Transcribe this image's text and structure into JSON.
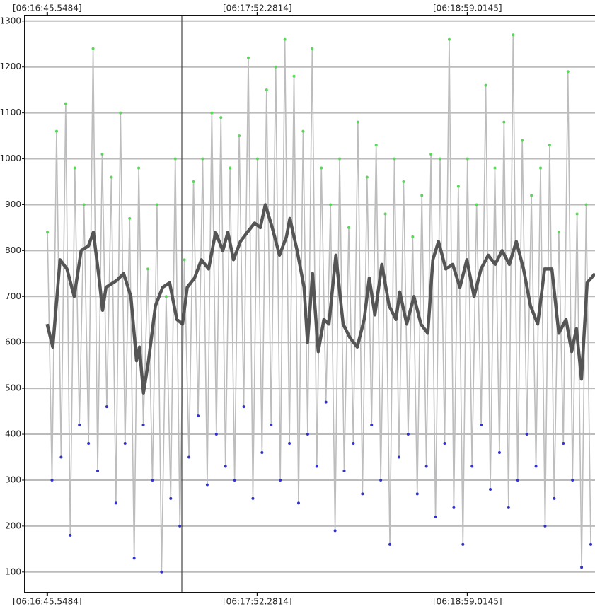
{
  "chart_data": {
    "type": "line",
    "xlim": [
      38.4,
      219.5
    ],
    "ylim": [
      55,
      1312
    ],
    "xticks": [
      {
        "value": 45.5484,
        "label": "[06:16:45.5484]"
      },
      {
        "value": 112.2814,
        "label": "[06:17:52.2814]"
      },
      {
        "value": 179.0145,
        "label": "[06:18:59.0145]"
      }
    ],
    "yticks": [
      100,
      200,
      300,
      400,
      500,
      600,
      700,
      800,
      900,
      1000,
      1100,
      1200,
      1300
    ],
    "grid": true,
    "series": [
      {
        "color": "#bdbdbd",
        "marker_colors": [
          "#5ad65a",
          "#3232c8"
        ],
        "x": [
          45.6,
          47.05,
          48.5,
          49.95,
          51.4,
          52.85,
          54.3,
          55.75,
          57.2,
          58.65,
          60.1,
          61.55,
          63,
          64.45,
          65.9,
          67.35,
          68.8,
          70.25,
          71.7,
          73.15,
          74.6,
          76.05,
          77.5,
          78.95,
          80.4,
          81.85,
          83.3,
          84.75,
          86.2,
          87.65,
          89.1,
          90.55,
          92,
          93.45,
          94.9,
          96.35,
          97.8,
          99.25,
          100.7,
          102.15,
          103.6,
          105.05,
          106.5,
          107.95,
          109.4,
          110.85,
          112.3,
          113.75,
          115.2,
          116.65,
          118.1,
          119.55,
          121,
          122.45,
          123.9,
          125.35,
          126.8,
          128.25,
          129.7,
          131.15,
          132.6,
          134.05,
          135.5,
          136.95,
          138.4,
          139.85,
          141.3,
          142.75,
          144.2,
          145.65,
          147.1,
          148.55,
          150,
          151.45,
          152.9,
          154.35,
          155.8,
          157.25,
          158.7,
          160.15,
          161.6,
          163.05,
          164.5,
          165.95,
          167.4,
          168.85,
          170.3,
          171.75,
          173.2,
          174.65,
          176.1,
          177.55,
          179,
          180.45,
          181.9,
          183.35,
          184.8,
          186.25,
          187.7,
          189.15,
          190.6,
          192.05,
          193.5,
          194.95,
          196.4,
          197.85,
          199.3,
          200.75,
          202.2,
          203.65,
          205.1,
          206.55,
          208,
          209.45,
          210.9,
          212.35,
          213.8,
          215.25,
          216.7,
          218.15
        ],
        "values": [
          840,
          300,
          1060,
          350,
          1120,
          180,
          980,
          420,
          900,
          380,
          1240,
          320,
          1010,
          460,
          960,
          250,
          1100,
          380,
          870,
          130,
          980,
          420,
          760,
          300,
          900,
          100,
          700,
          260,
          1000,
          200,
          780,
          350,
          950,
          440,
          1000,
          290,
          1100,
          400,
          1090,
          330,
          980,
          300,
          1050,
          460,
          1220,
          260,
          1000,
          360,
          1150,
          420,
          1200,
          300,
          1260,
          380,
          1180,
          250,
          1060,
          400,
          1240,
          330,
          980,
          470,
          900,
          190,
          1000,
          320,
          850,
          380,
          1080,
          270,
          960,
          420,
          1030,
          300,
          880,
          160,
          1000,
          350,
          950,
          400,
          830,
          270,
          920,
          330,
          1010,
          220,
          1000,
          380,
          1260,
          240,
          940,
          160,
          1000,
          330,
          900,
          420,
          1160,
          280,
          980,
          360,
          1080,
          240,
          1270,
          300,
          1040,
          400,
          920,
          330,
          980,
          200,
          1030,
          260,
          840,
          380,
          1190,
          300,
          880,
          110,
          900,
          160
        ]
      },
      {
        "color": "#555555",
        "x": [
          45.5,
          47.3,
          49.6,
          51.8,
          54.1,
          56.3,
          58.6,
          60.2,
          62.0,
          63.1,
          64.2,
          67.6,
          69.8,
          72.1,
          73.9,
          74.8,
          76.1,
          77.7,
          79.9,
          82.2,
          84.4,
          86.7,
          88.5,
          90.0,
          92.3,
          94.5,
          96.8,
          99.0,
          101.3,
          102.9,
          104.7,
          106.9,
          109.1,
          111.4,
          113.2,
          114.8,
          117.0,
          119.3,
          121.5,
          122.6,
          124.9,
          127.1,
          128.2,
          129.8,
          131.6,
          133.4,
          135.0,
          137.2,
          139.5,
          141.7,
          144.0,
          146.2,
          147.8,
          149.6,
          151.8,
          154.1,
          156.3,
          157.5,
          159.7,
          162.0,
          164.2,
          166.4,
          168.0,
          169.8,
          172.1,
          174.3,
          176.6,
          178.8,
          181.1,
          183.3,
          185.6,
          187.8,
          190.0,
          192.3,
          194.5,
          196.8,
          199.0,
          201.3,
          203.5,
          205.8,
          208.0,
          210.3,
          212.1,
          213.6,
          215.2,
          217.0,
          219.5
        ],
        "values": [
          640,
          590,
          780,
          760,
          700,
          800,
          810,
          840,
          740,
          670,
          720,
          735,
          750,
          700,
          560,
          590,
          490,
          560,
          680,
          720,
          730,
          650,
          640,
          720,
          740,
          780,
          760,
          840,
          800,
          840,
          780,
          820,
          840,
          860,
          850,
          900,
          850,
          790,
          830,
          870,
          800,
          720,
          600,
          750,
          580,
          650,
          640,
          790,
          640,
          610,
          590,
          650,
          740,
          660,
          770,
          680,
          650,
          710,
          640,
          700,
          640,
          620,
          780,
          820,
          760,
          770,
          720,
          780,
          700,
          760,
          790,
          770,
          800,
          770,
          820,
          760,
          680,
          640,
          760,
          760,
          620,
          650,
          580,
          630,
          520,
          730,
          750
        ]
      }
    ]
  }
}
